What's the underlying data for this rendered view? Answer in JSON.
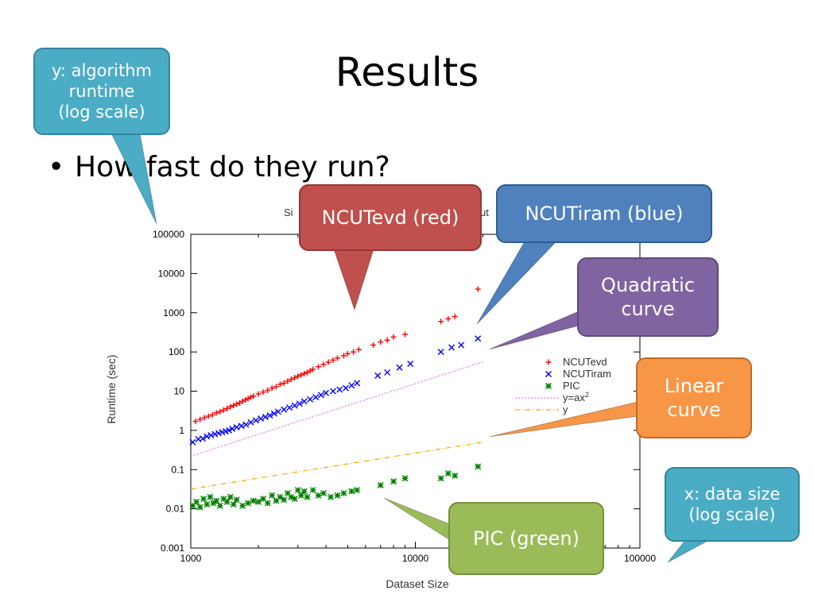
{
  "slide": {
    "title": "Results",
    "bullet": "How fast do they run?"
  },
  "chart_data": {
    "type": "scatter",
    "title": "Si",
    "title_tail": "ut",
    "xlabel": "Dataset Size",
    "ylabel": "Runtime (sec)",
    "x_scale": "log",
    "y_scale": "log",
    "xlim": [
      1000,
      100000
    ],
    "ylim": [
      0.001,
      100000
    ],
    "x_ticks": [
      "1000",
      "10000",
      "100000"
    ],
    "y_ticks": [
      "100000",
      "10000",
      "1000",
      "100",
      "10",
      "1",
      "0.1",
      "0.01",
      "0.001"
    ],
    "legend_position": "right",
    "series": [
      {
        "name": "NCUTevd",
        "color": "#ff0000",
        "marker": "plus",
        "x": [
          1050,
          1100,
          1150,
          1200,
          1250,
          1300,
          1350,
          1400,
          1450,
          1500,
          1550,
          1600,
          1650,
          1700,
          1750,
          1800,
          1850,
          1900,
          2000,
          2100,
          2200,
          2300,
          2400,
          2500,
          2600,
          2700,
          2800,
          2900,
          3000,
          3100,
          3200,
          3300,
          3400,
          3500,
          3700,
          3900,
          4100,
          4300,
          4500,
          4800,
          5000,
          5300,
          5600,
          6500,
          7000,
          7500,
          8000,
          9000,
          13000,
          14000,
          15000,
          19000
        ],
        "y": [
          1.7,
          1.9,
          2.1,
          2.3,
          2.5,
          2.8,
          3.0,
          3.3,
          3.6,
          4.0,
          4.3,
          4.7,
          5.0,
          5.5,
          6.0,
          6.5,
          7.0,
          7.5,
          8.5,
          9.5,
          10.5,
          12,
          13,
          15,
          16,
          18,
          20,
          22,
          24,
          26,
          28,
          30,
          33,
          36,
          42,
          48,
          55,
          62,
          70,
          80,
          90,
          100,
          115,
          150,
          180,
          200,
          240,
          280,
          600,
          700,
          800,
          4000
        ]
      },
      {
        "name": "NCUTiram",
        "color": "#0000ff",
        "marker": "x",
        "x": [
          1020,
          1080,
          1130,
          1180,
          1230,
          1280,
          1330,
          1380,
          1430,
          1480,
          1530,
          1600,
          1680,
          1760,
          1850,
          1950,
          2050,
          2150,
          2250,
          2350,
          2450,
          2600,
          2750,
          2900,
          3050,
          3200,
          3400,
          3600,
          3800,
          4000,
          4300,
          4600,
          4900,
          5200,
          5500,
          6800,
          7500,
          8500,
          9500,
          13000,
          14500,
          16000,
          19000
        ],
        "y": [
          0.5,
          0.6,
          0.62,
          0.7,
          0.75,
          0.8,
          0.85,
          0.9,
          0.95,
          1.0,
          1.1,
          1.2,
          1.3,
          1.4,
          1.6,
          1.8,
          2.0,
          2.2,
          2.4,
          2.7,
          3.0,
          3.4,
          3.8,
          4.3,
          4.8,
          5.5,
          6.2,
          7.0,
          8.0,
          9.0,
          10,
          11,
          12,
          14,
          16,
          25,
          30,
          40,
          50,
          100,
          130,
          150,
          220
        ]
      },
      {
        "name": "PIC",
        "color": "#008000",
        "marker": "asterisk",
        "x": [
          1020,
          1060,
          1100,
          1140,
          1180,
          1220,
          1260,
          1300,
          1350,
          1400,
          1450,
          1500,
          1550,
          1600,
          1700,
          1800,
          1900,
          2000,
          2100,
          2200,
          2300,
          2400,
          2500,
          2600,
          2700,
          2800,
          2900,
          3000,
          3100,
          3200,
          3300,
          3500,
          3700,
          3900,
          4200,
          4500,
          4800,
          5200,
          5500,
          7000,
          8000,
          9000,
          13000,
          14000,
          15000,
          19000
        ],
        "y": [
          0.012,
          0.015,
          0.011,
          0.018,
          0.013,
          0.02,
          0.014,
          0.016,
          0.012,
          0.018,
          0.015,
          0.02,
          0.013,
          0.017,
          0.012,
          0.014,
          0.016,
          0.015,
          0.018,
          0.014,
          0.022,
          0.016,
          0.02,
          0.017,
          0.025,
          0.02,
          0.018,
          0.03,
          0.022,
          0.028,
          0.02,
          0.03,
          0.022,
          0.025,
          0.02,
          0.022,
          0.025,
          0.028,
          0.03,
          0.04,
          0.05,
          0.06,
          0.06,
          0.08,
          0.07,
          0.12
        ]
      },
      {
        "name": "y=ax",
        "name_sup": "2",
        "color": "#dd88ee",
        "style": "dotted",
        "x": [
          1000,
          20000
        ],
        "y": [
          0.22,
          56
        ]
      },
      {
        "name": "y",
        "color": "#ffaa00",
        "style": "dash-dot",
        "x": [
          1000,
          20000
        ],
        "y": [
          0.032,
          0.5
        ]
      }
    ]
  },
  "callouts": [
    {
      "id": "y-axis",
      "text": [
        "y: algorithm",
        "runtime",
        "(log scale)"
      ],
      "color": "#4bacc6"
    },
    {
      "id": "ncutevd",
      "text": [
        "NCUTevd (red)"
      ],
      "color": "#c0504d"
    },
    {
      "id": "ncutiram",
      "text": [
        "NCUTiram (blue)"
      ],
      "color": "#4f81bd"
    },
    {
      "id": "quadratic",
      "text": [
        "Quadratic",
        "curve"
      ],
      "color": "#8064a2"
    },
    {
      "id": "linear",
      "text": [
        "Linear",
        "curve"
      ],
      "color": "#f79646"
    },
    {
      "id": "pic",
      "text": [
        "PIC (green)"
      ],
      "color": "#9bbb59"
    },
    {
      "id": "x-axis",
      "text": [
        "x: data size",
        "(log scale)"
      ],
      "color": "#4bacc6"
    }
  ]
}
